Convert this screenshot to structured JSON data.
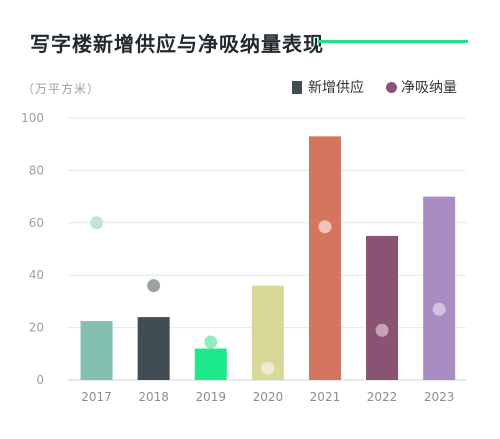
{
  "title": "写字楼新增供应与净吸纳量表现",
  "unit_label": "（万平方米）",
  "legend": {
    "supply_label": "新增供应",
    "absorption_label": "净吸纳量"
  },
  "chart_data": {
    "type": "bar",
    "title": "写字楼新增供应与净吸纳量表现",
    "ylabel": "（万平方米）",
    "categories": [
      "2017",
      "2018",
      "2019",
      "2020",
      "2021",
      "2022",
      "2023"
    ],
    "series": [
      {
        "name": "新增供应",
        "type": "bar",
        "values": [
          22.5,
          24,
          12,
          36,
          93,
          55,
          70
        ]
      },
      {
        "name": "净吸纳量",
        "type": "scatter",
        "values": [
          60,
          36,
          14.5,
          4.5,
          58.5,
          19,
          27
        ]
      }
    ],
    "yticks": [
      0,
      20,
      40,
      60,
      80,
      100
    ],
    "ylim": [
      0,
      100
    ],
    "grid": true,
    "legend_position": "top-right",
    "colors": {
      "bars": [
        "#83bfae",
        "#404e53",
        "#1de88c",
        "#d8d898",
        "#d4765d",
        "#8b5373",
        "#a98dc2"
      ],
      "dots": [
        "#bfe5d3",
        "#9ba2a2",
        "#95ecc0",
        "#f0ead0",
        "#f2c3b6",
        "#c6a2b7",
        "#d1c0e1"
      ],
      "legend_supply": "#404e53",
      "legend_absorption": "#8b5373"
    }
  }
}
